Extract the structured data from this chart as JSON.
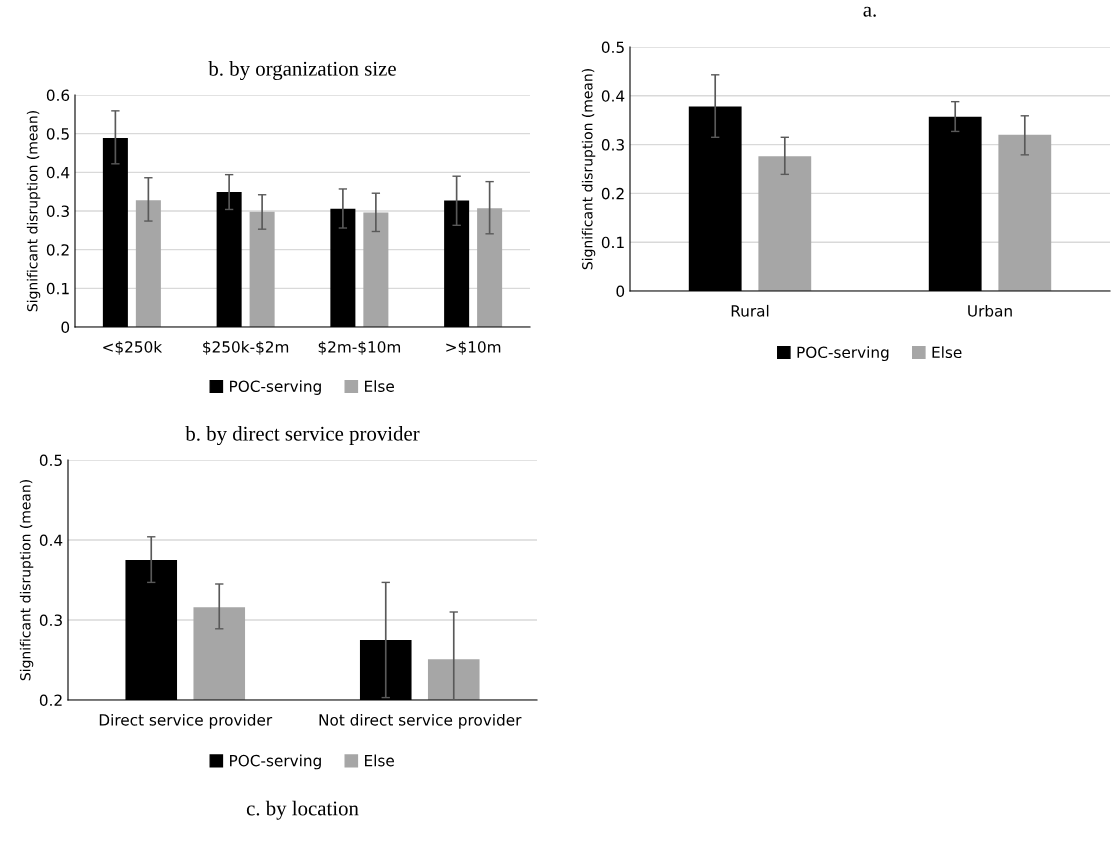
{
  "chart_data": [
    {
      "type": "bar",
      "title": "b. by organization size",
      "ylabel": "Significant disruption (mean)",
      "categories": [
        "<$250k",
        "$250k-$2m",
        "$2m-$10m",
        ">$10m"
      ],
      "ylim": [
        0,
        0.6
      ],
      "yticks": [
        0,
        0.1,
        0.2,
        0.3,
        0.4,
        0.5,
        0.6
      ],
      "grid": "y",
      "legend": "bottom",
      "series": [
        {
          "name": "POC-serving",
          "color": "#000000",
          "values": [
            0.489,
            0.349,
            0.306,
            0.327
          ],
          "errors": [
            [
              0.422,
              0.559
            ],
            [
              0.304,
              0.394
            ],
            [
              0.256,
              0.357
            ],
            [
              0.263,
              0.39
            ]
          ]
        },
        {
          "name": "Else",
          "color": "#a6a6a6",
          "values": [
            0.328,
            0.298,
            0.296,
            0.307
          ],
          "errors": [
            [
              0.274,
              0.386
            ],
            [
              0.253,
              0.342
            ],
            [
              0.247,
              0.346
            ],
            [
              0.241,
              0.376
            ]
          ]
        }
      ]
    },
    {
      "type": "bar",
      "title": "a.",
      "ylabel": "Significant disruption (mean)",
      "categories": [
        "Rural",
        "Urban"
      ],
      "ylim": [
        0,
        0.5
      ],
      "yticks": [
        0,
        0.1,
        0.2,
        0.3,
        0.4,
        0.5
      ],
      "grid": "y",
      "legend": "bottom",
      "series": [
        {
          "name": "POC-serving",
          "color": "#000000",
          "values": [
            0.378,
            0.357
          ],
          "errors": [
            [
              0.315,
              0.443
            ],
            [
              0.327,
              0.388
            ]
          ]
        },
        {
          "name": "Else",
          "color": "#a6a6a6",
          "values": [
            0.276,
            0.32
          ],
          "errors": [
            [
              0.239,
              0.315
            ],
            [
              0.279,
              0.359
            ]
          ]
        }
      ]
    },
    {
      "type": "bar",
      "title": "b. by direct service provider",
      "ylabel": "Significant disruption (mean)",
      "categories": [
        "Direct service provider",
        "Not direct service provider"
      ],
      "ylim": [
        0.2,
        0.5
      ],
      "yticks": [
        0.2,
        0.3,
        0.4,
        0.5
      ],
      "grid": "y",
      "legend": "bottom",
      "annotations": [
        "c. by location"
      ],
      "series": [
        {
          "name": "POC-serving",
          "color": "#000000",
          "values": [
            0.375,
            0.275
          ],
          "errors": [
            [
              0.347,
              0.404
            ],
            [
              0.203,
              0.347
            ]
          ]
        },
        {
          "name": "Else",
          "color": "#a6a6a6",
          "values": [
            0.316,
            0.251
          ],
          "errors": [
            [
              0.289,
              0.345
            ],
            [
              0.2,
              0.31
            ]
          ]
        }
      ]
    }
  ]
}
